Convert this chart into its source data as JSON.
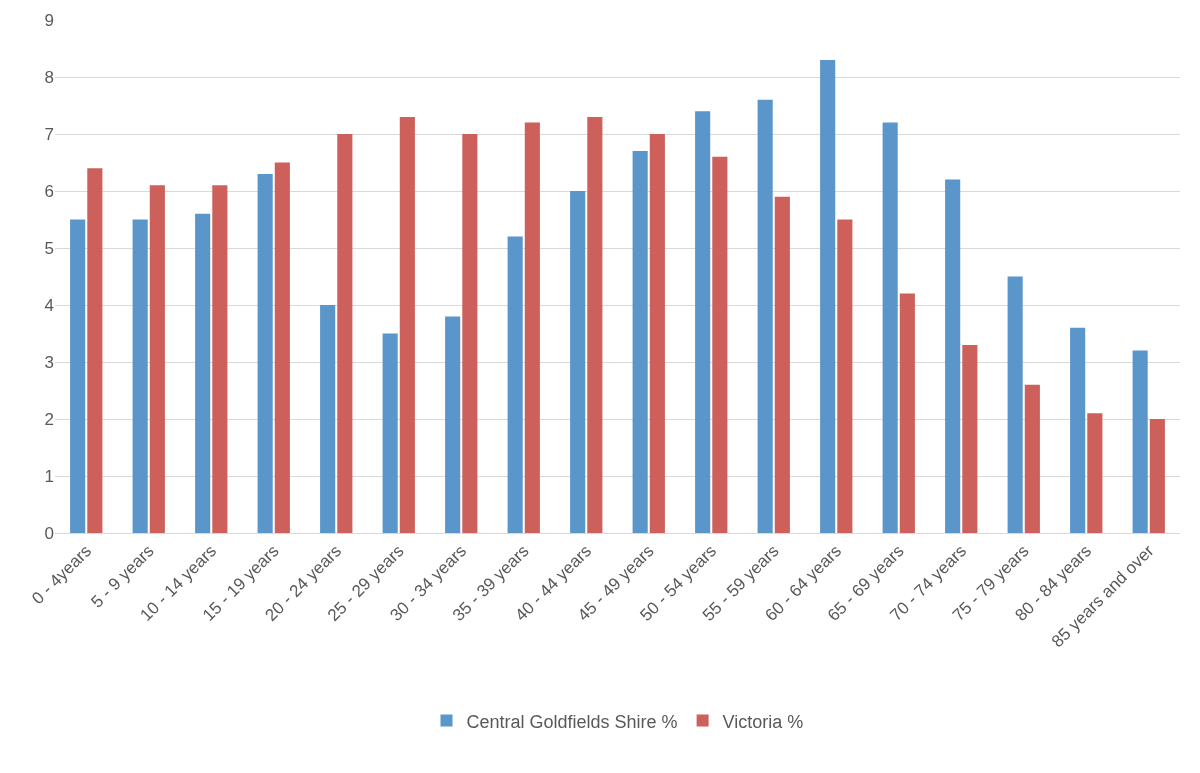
{
  "chart_data": {
    "type": "bar",
    "categories": [
      "0 - 4years",
      "5 - 9 years",
      "10 - 14 years",
      "15 - 19 years",
      "20 - 24 years",
      "25 - 29 years",
      "30 - 34 years",
      "35 - 39 years",
      "40 - 44 years",
      "45 - 49 years",
      "50 - 54 years",
      "55 - 59 years",
      "60 - 64 years",
      "65 - 69 years",
      "70 - 74 years",
      "75 - 79 years",
      "80 - 84 years",
      "85 years and over"
    ],
    "series": [
      {
        "name": "Central Goldfields Shire %",
        "color": "#5b96cb",
        "values": [
          5.5,
          5.5,
          5.6,
          6.3,
          4.0,
          3.5,
          3.8,
          5.2,
          6.0,
          6.7,
          7.4,
          7.6,
          8.3,
          7.2,
          6.2,
          4.5,
          3.6,
          3.2
        ]
      },
      {
        "name": "Victoria %",
        "color": "#cd605a",
        "values": [
          6.4,
          6.1,
          6.1,
          6.5,
          7.0,
          7.3,
          7.0,
          7.2,
          7.3,
          7.0,
          6.6,
          5.9,
          5.5,
          4.2,
          3.3,
          2.6,
          2.1,
          2.0
        ]
      }
    ],
    "ylim": [
      0,
      9
    ],
    "yticks": [
      0,
      1,
      2,
      3,
      4,
      5,
      6,
      7,
      8,
      9
    ],
    "grid": "y",
    "legend": "bottom"
  }
}
